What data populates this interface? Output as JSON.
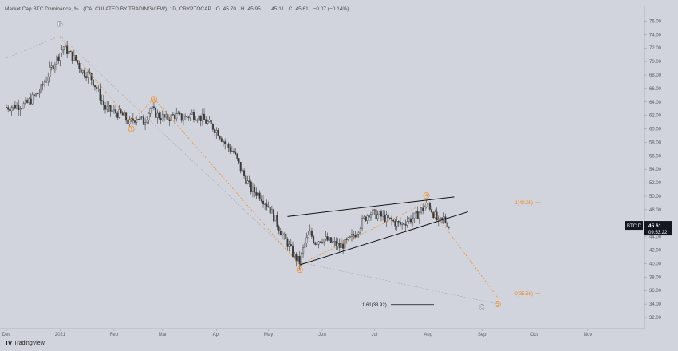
{
  "header": {
    "symbol": "Market Cap BTC Dominance, %",
    "source": "(CALCULATED BY TRADINGVIEW), 1D, CRYPTOCAP",
    "open_label": "O",
    "open": "45.70",
    "high_label": "H",
    "high": "45.95",
    "low_label": "L",
    "low": "45.11",
    "close_label": "C",
    "close": "45.61",
    "change": "−0.07 (−0.14%)"
  },
  "footer": {
    "logo_text": "TV",
    "brand": "TradingView"
  },
  "price_tag": {
    "symbol": "BTC.D",
    "price": "45.61",
    "countdown": "09:53:22"
  },
  "colors": {
    "background": "#d1d4dc",
    "candle": "#3a3a3a",
    "wave": "#f0881f",
    "wave_alt": "#8a8a8a",
    "trendline": "#111111",
    "tag_bg": "#131722",
    "tag_text": "#ffffff"
  },
  "chart_data": {
    "type": "candlestick",
    "ylim": [
      32.0,
      77.0
    ],
    "xlim": [
      "2020-12-01",
      "2021-11-30"
    ],
    "yticks": [
      "76.00",
      "74.00",
      "72.00",
      "70.00",
      "68.00",
      "66.00",
      "64.00",
      "62.00",
      "60.00",
      "58.00",
      "56.00",
      "54.00",
      "52.00",
      "50.00",
      "48.00",
      "46.00",
      "44.00",
      "42.00",
      "40.00",
      "38.00",
      "36.00",
      "34.00",
      "32.00"
    ],
    "xticks": [
      {
        "label": "Dec",
        "date": "2020-12-01"
      },
      {
        "label": "2021",
        "date": "2021-01-01"
      },
      {
        "label": "Feb",
        "date": "2021-02-01"
      },
      {
        "label": "Mar",
        "date": "2021-03-01"
      },
      {
        "label": "Apr",
        "date": "2021-04-01"
      },
      {
        "label": "May",
        "date": "2021-05-01"
      },
      {
        "label": "Jun",
        "date": "2021-06-01"
      },
      {
        "label": "Jul",
        "date": "2021-07-01"
      },
      {
        "label": "Aug",
        "date": "2021-08-01"
      },
      {
        "label": "Sep",
        "date": "2021-09-01"
      },
      {
        "label": "Oct",
        "date": "2021-10-01"
      },
      {
        "label": "Nov",
        "date": "2021-11-01"
      }
    ],
    "close_path": [
      [
        "2020-12-01",
        63.2
      ],
      [
        "2020-12-12",
        63.6
      ],
      [
        "2020-12-20",
        65.5
      ],
      [
        "2020-12-28",
        69.5
      ],
      [
        "2021-01-03",
        72.2
      ],
      [
        "2021-01-07",
        71.0
      ],
      [
        "2021-01-10",
        70.2
      ],
      [
        "2021-01-14",
        68.5
      ],
      [
        "2021-01-18",
        68.0
      ],
      [
        "2021-01-22",
        66.0
      ],
      [
        "2021-01-27",
        63.0
      ],
      [
        "2021-02-01",
        62.5
      ],
      [
        "2021-02-06",
        62.0
      ],
      [
        "2021-02-10",
        60.8
      ],
      [
        "2021-02-14",
        61.8
      ],
      [
        "2021-02-18",
        61.0
      ],
      [
        "2021-02-22",
        63.0
      ],
      [
        "2021-02-26",
        62.0
      ],
      [
        "2021-03-03",
        61.5
      ],
      [
        "2021-03-08",
        62.0
      ],
      [
        "2021-03-13",
        61.5
      ],
      [
        "2021-03-18",
        62.2
      ],
      [
        "2021-03-24",
        61.5
      ],
      [
        "2021-03-29",
        60.5
      ],
      [
        "2021-04-02",
        59.5
      ],
      [
        "2021-04-06",
        57.8
      ],
      [
        "2021-04-11",
        56.5
      ],
      [
        "2021-04-16",
        53.5
      ],
      [
        "2021-04-21",
        51.0
      ],
      [
        "2021-04-26",
        50.2
      ],
      [
        "2021-05-01",
        48.5
      ],
      [
        "2021-05-05",
        46.5
      ],
      [
        "2021-05-09",
        44.2
      ],
      [
        "2021-05-12",
        43.0
      ],
      [
        "2021-05-16",
        41.0
      ],
      [
        "2021-05-19",
        40.2
      ],
      [
        "2021-05-22",
        43.0
      ],
      [
        "2021-05-25",
        44.5
      ],
      [
        "2021-05-28",
        43.2
      ],
      [
        "2021-06-01",
        43.8
      ],
      [
        "2021-06-06",
        43.2
      ],
      [
        "2021-06-11",
        42.5
      ],
      [
        "2021-06-16",
        43.3
      ],
      [
        "2021-06-20",
        44.5
      ],
      [
        "2021-06-24",
        46.2
      ],
      [
        "2021-06-28",
        47.6
      ],
      [
        "2021-07-02",
        47.3
      ],
      [
        "2021-07-07",
        46.8
      ],
      [
        "2021-07-12",
        46.2
      ],
      [
        "2021-07-16",
        45.8
      ],
      [
        "2021-07-20",
        46.4
      ],
      [
        "2021-07-24",
        46.9
      ],
      [
        "2021-07-28",
        47.9
      ],
      [
        "2021-08-01",
        48.9
      ],
      [
        "2021-08-04",
        47.5
      ],
      [
        "2021-08-07",
        46.0
      ],
      [
        "2021-08-10",
        46.7
      ],
      [
        "2021-08-13",
        45.6
      ]
    ],
    "wave_labels": [
      {
        "label": "1",
        "date": "2021-02-11",
        "value": 60.0
      },
      {
        "label": "2",
        "date": "2021-02-24",
        "value": 64.4
      },
      {
        "label": "3",
        "date": "2021-05-19",
        "value": 39.1
      },
      {
        "label": "4",
        "date": "2021-07-31",
        "value": 50.1
      },
      {
        "label": "5",
        "date": "2021-09-10",
        "value": 34.0
      }
    ],
    "letter_labels": [
      {
        "label": "B",
        "date": "2021-01-01",
        "value": 75.2
      },
      {
        "label": "C",
        "date": "2021-09-01",
        "value": 33.2
      }
    ],
    "fib_levels": [
      {
        "label": "1(49.05)",
        "value": 49.05,
        "date": "2021-09-20"
      },
      {
        "label": "0(35.56)",
        "value": 35.56,
        "date": "2021-09-20"
      },
      {
        "label": "1.61(33.92)",
        "value": 33.92,
        "date": "2021-06-24"
      }
    ],
    "triangle": {
      "upper": [
        [
          "2021-05-12",
          47.0
        ],
        [
          "2021-08-16",
          49.9
        ]
      ],
      "lower": [
        [
          "2021-05-19",
          39.8
        ],
        [
          "2021-08-24",
          47.7
        ]
      ]
    },
    "wave_path": [
      [
        "2021-01-01",
        73.5
      ],
      [
        "2021-02-11",
        61.0
      ],
      [
        "2021-02-24",
        64.5
      ],
      [
        "2021-05-19",
        39.8
      ],
      [
        "2021-07-31",
        49.1
      ],
      [
        "2021-09-10",
        35.0
      ]
    ],
    "channel_path": [
      [
        "2020-12-01",
        70.5
      ],
      [
        "2021-01-01",
        73.8
      ],
      [
        "2021-05-19",
        40.2
      ],
      [
        "2021-09-10",
        34.0
      ]
    ]
  }
}
